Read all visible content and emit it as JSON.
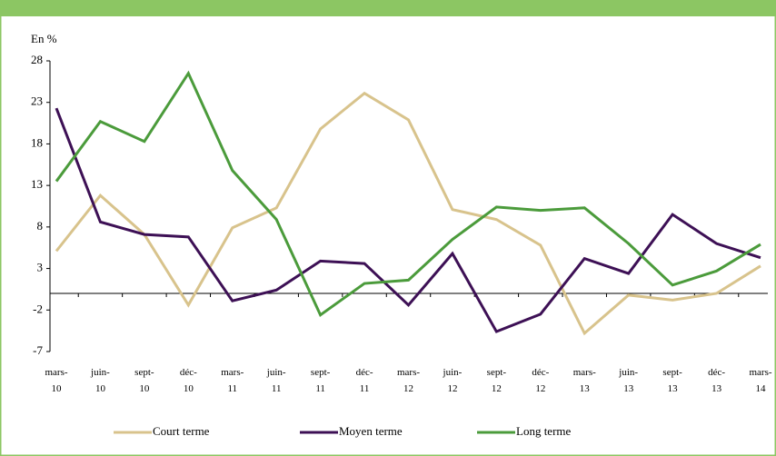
{
  "chart_data": {
    "type": "line",
    "ylabel": "En %",
    "categories": [
      "mars-10",
      "juin-10",
      "sept-10",
      "déc-10",
      "mars-11",
      "juin-11",
      "sept-11",
      "déc-11",
      "mars-12",
      "juin-12",
      "sept-12",
      "déc-12",
      "mars-13",
      "juin-13",
      "sept-13",
      "déc-13",
      "mars-14"
    ],
    "series": [
      {
        "name": "Court terme",
        "color": "#d8c38c",
        "values": [
          5.1,
          11.8,
          7.1,
          -1.4,
          7.9,
          10.3,
          19.8,
          24.1,
          20.9,
          10.1,
          8.9,
          5.8,
          -4.8,
          -0.2,
          -0.8,
          0,
          3.3
        ]
      },
      {
        "name": "Moyen terme",
        "color": "#3d1055",
        "values": [
          22.3,
          8.6,
          7.1,
          6.8,
          -0.9,
          0.4,
          3.9,
          3.6,
          -1.4,
          4.8,
          -4.6,
          -2.5,
          4.2,
          2.4,
          9.5,
          6.0,
          4.3
        ]
      },
      {
        "name": "Long terme",
        "color": "#4b9b3b",
        "values": [
          13.5,
          20.7,
          18.3,
          26.5,
          14.8,
          8.9,
          -2.6,
          1.2,
          1.6,
          6.5,
          10.4,
          10.0,
          10.3,
          6.0,
          1.0,
          2.7,
          5.9
        ]
      }
    ],
    "ylim": [
      -7,
      28
    ],
    "yticks": [
      28,
      23,
      18,
      13,
      8,
      3,
      -2,
      -7
    ]
  }
}
